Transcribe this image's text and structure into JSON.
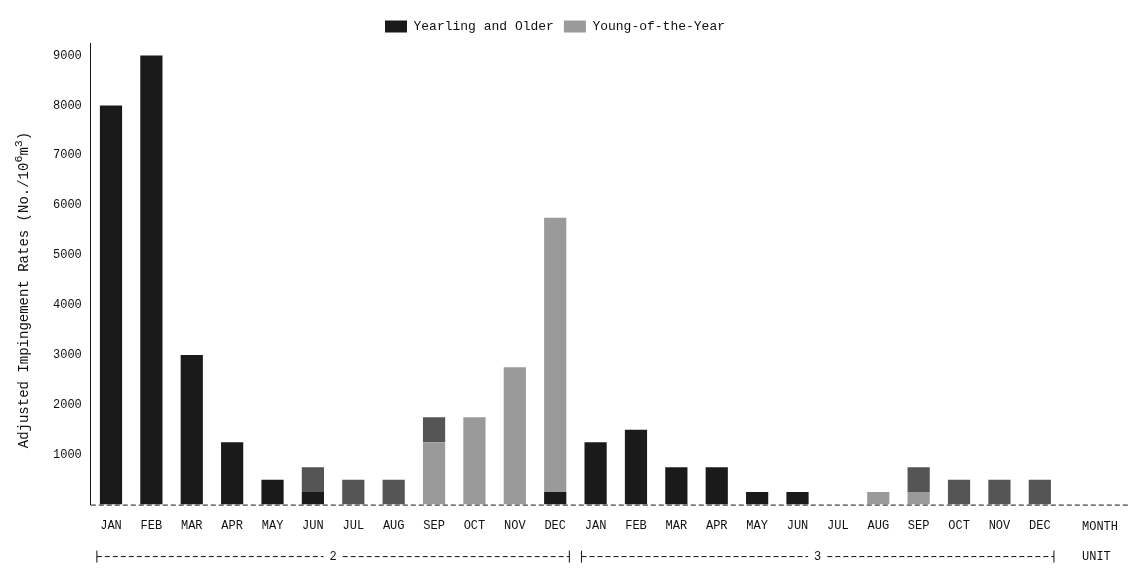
{
  "chart_data": {
    "type": "bar",
    "stacked": true,
    "ylabel": "Adjusted Impingement Rates (No./10$^{6}$m$^{3}$)",
    "xlabel": "MONTH",
    "categories": [
      "JAN",
      "FEB",
      "MAR",
      "APR",
      "MAY",
      "JUN",
      "JUL",
      "AUG",
      "SEP",
      "OCT",
      "NOV",
      "DEC",
      "JAN",
      "FEB",
      "MAR",
      "APR",
      "MAY",
      "JUN",
      "JUL",
      "AUG",
      "SEP",
      "OCT",
      "NOV",
      "DEC"
    ],
    "series": [
      {
        "name": "Yearling and Older",
        "color": "#1a1a1a",
        "values": [
          8000,
          9000,
          3000,
          1250,
          500,
          250,
          0,
          0,
          0,
          0,
          0,
          250,
          1250,
          1500,
          750,
          750,
          250,
          250,
          0,
          0,
          0,
          0,
          0,
          0
        ]
      },
      {
        "name": "Young-of-the-Year",
        "color": "#9a9a9a",
        "values": [
          0,
          0,
          0,
          0,
          0,
          0,
          0,
          0,
          1250,
          1750,
          2750,
          5500,
          0,
          0,
          0,
          0,
          0,
          0,
          0,
          250,
          250,
          0,
          0,
          0
        ]
      },
      {
        "color": "#555555",
        "values": [
          0,
          0,
          0,
          0,
          0,
          500,
          500,
          500,
          500,
          0,
          0,
          0,
          0,
          0,
          0,
          0,
          0,
          0,
          0,
          0,
          500,
          500,
          500,
          500
        ]
      }
    ],
    "ylim": [
      0,
      9250
    ],
    "yticks": [
      1000,
      2000,
      3000,
      4000,
      5000,
      6000,
      7000,
      8000,
      9000
    ],
    "grid": false,
    "legend": "top",
    "annotations": [
      "UNIT",
      "2",
      "3"
    ]
  }
}
